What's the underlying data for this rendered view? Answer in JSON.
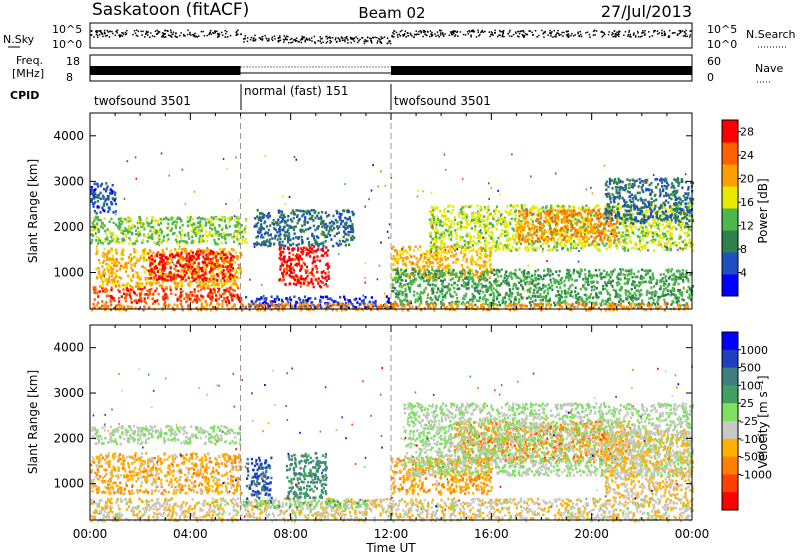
{
  "header": {
    "station": "Saskatoon (fitACF)",
    "beam": "Beam 02",
    "date": "27/Jul/2013"
  },
  "noise_panel": {
    "left_label": "N.Sky",
    "right_label": "N.Search",
    "left_ticks": [
      "10^5",
      "10^0"
    ],
    "right_ticks": [
      "10^5",
      "10^0"
    ]
  },
  "freq_panel": {
    "left_label_1": "Freq.",
    "left_label_2": "[MHz]",
    "left_ticks": [
      "18",
      "8"
    ],
    "right_label": "Nave",
    "right_ticks": [
      "60",
      "0"
    ]
  },
  "cpid_panel": {
    "label": "CPID",
    "segments": [
      {
        "name": "twofsound 3501",
        "start_hour": 0,
        "end_hour": 6
      },
      {
        "name": "normal (fast) 151",
        "start_hour": 6,
        "end_hour": 12
      },
      {
        "name": "twofsound 3501",
        "start_hour": 12,
        "end_hour": 24
      }
    ]
  },
  "chart_data": [
    {
      "type": "heatmap",
      "title": "",
      "xlabel": "Time UT",
      "ylabel": "Slant Range [km]",
      "xlim": [
        0,
        24
      ],
      "ylim": [
        200,
        4500
      ],
      "x_ticks": [
        "00:00",
        "04:00",
        "08:00",
        "12:00",
        "16:00",
        "20:00",
        "00:00"
      ],
      "y_ticks": [
        "1000",
        "2000",
        "3000",
        "4000"
      ],
      "colorbar": {
        "label": "Power [dB]",
        "ticks": [
          "4",
          "8",
          "12",
          "16",
          "20",
          "24",
          "28"
        ],
        "range": [
          0,
          30
        ],
        "colors": [
          "#0000ff",
          "#1f4fc0",
          "#2f7f4f",
          "#4cb84c",
          "#e8e800",
          "#ffa000",
          "#ff6000",
          "#ff0000"
        ]
      },
      "features": [
        {
          "t0": 0.1,
          "t1": 6.0,
          "r0": 350,
          "r1": 700,
          "value": 26
        },
        {
          "t0": 0.2,
          "t1": 6.0,
          "r0": 700,
          "r1": 1550,
          "value": 20
        },
        {
          "t0": 2.3,
          "t1": 5.7,
          "r0": 850,
          "r1": 1500,
          "value": 28
        },
        {
          "t0": 0.0,
          "t1": 6.2,
          "r0": 1650,
          "r1": 2250,
          "value": 14
        },
        {
          "t0": 0.0,
          "t1": 1.0,
          "r0": 2300,
          "r1": 3000,
          "value": 6
        },
        {
          "t0": 6.5,
          "t1": 10.5,
          "r0": 1600,
          "r1": 2400,
          "value": 8
        },
        {
          "t0": 7.5,
          "t1": 9.5,
          "r0": 700,
          "r1": 1600,
          "value": 28
        },
        {
          "t0": 6.0,
          "t1": 12.0,
          "r0": 250,
          "r1": 500,
          "value": 4
        },
        {
          "t0": 12.0,
          "t1": 16.0,
          "r0": 900,
          "r1": 1600,
          "value": 20
        },
        {
          "t0": 13.5,
          "t1": 24.0,
          "r0": 1500,
          "r1": 2500,
          "value": 16
        },
        {
          "t0": 17.0,
          "t1": 21.0,
          "r0": 1700,
          "r1": 2400,
          "value": 22
        },
        {
          "t0": 20.5,
          "t1": 24.0,
          "r0": 2100,
          "r1": 3100,
          "value": 8
        },
        {
          "t0": 12.0,
          "t1": 24.0,
          "r0": 300,
          "r1": 1100,
          "value": 12
        },
        {
          "t0": 0.0,
          "t1": 24.0,
          "r0": 200,
          "r1": 350,
          "value": 22
        }
      ]
    },
    {
      "type": "heatmap",
      "title": "",
      "xlabel": "Time UT",
      "ylabel": "Slant Range [km]",
      "xlim": [
        0,
        24
      ],
      "ylim": [
        200,
        4500
      ],
      "x_ticks": [
        "00:00",
        "04:00",
        "08:00",
        "12:00",
        "16:00",
        "20:00",
        "00:00"
      ],
      "y_ticks": [
        "1000",
        "2000",
        "3000",
        "4000"
      ],
      "colorbar": {
        "label": "Velocity [m s⁻¹]",
        "ticks": [
          "1000",
          "500",
          "100",
          "25",
          "-25",
          "-100",
          "-500",
          "-1000"
        ],
        "range": [
          -1000,
          1000
        ],
        "colors": [
          "#ff0000",
          "#ff4000",
          "#ff8000",
          "#ffb000",
          "#c8c8c8",
          "#7fe05f",
          "#3fa05f",
          "#3f7f7f",
          "#1f3fbf",
          "#0000ff"
        ]
      },
      "features": [
        {
          "t0": 0.0,
          "t1": 24.0,
          "r0": 200,
          "r1": 700,
          "value": -150
        },
        {
          "t0": 0.0,
          "t1": 6.0,
          "r0": 800,
          "r1": 1700,
          "value": -300
        },
        {
          "t0": 0.0,
          "t1": 6.0,
          "r0": 1900,
          "r1": 2300,
          "value": 0
        },
        {
          "t0": 6.2,
          "t1": 7.2,
          "r0": 600,
          "r1": 1600,
          "value": 600
        },
        {
          "t0": 7.8,
          "t1": 9.4,
          "r0": 700,
          "r1": 1700,
          "value": 400
        },
        {
          "t0": 6.0,
          "t1": 11.0,
          "r0": 500,
          "r1": 650,
          "value": 120
        },
        {
          "t0": 12.0,
          "t1": 16.0,
          "r0": 800,
          "r1": 1600,
          "value": -350
        },
        {
          "t0": 14.5,
          "t1": 21.5,
          "r0": 1500,
          "r1": 2400,
          "value": -450
        },
        {
          "t0": 12.5,
          "t1": 24.0,
          "r0": 1200,
          "r1": 2800,
          "value": 0
        },
        {
          "t0": 20.5,
          "t1": 24.0,
          "r0": 700,
          "r1": 2200,
          "value": -200
        }
      ]
    }
  ],
  "colors": {
    "ground_scatter": "#a0a0a0",
    "cpid_divider": "#808080"
  }
}
